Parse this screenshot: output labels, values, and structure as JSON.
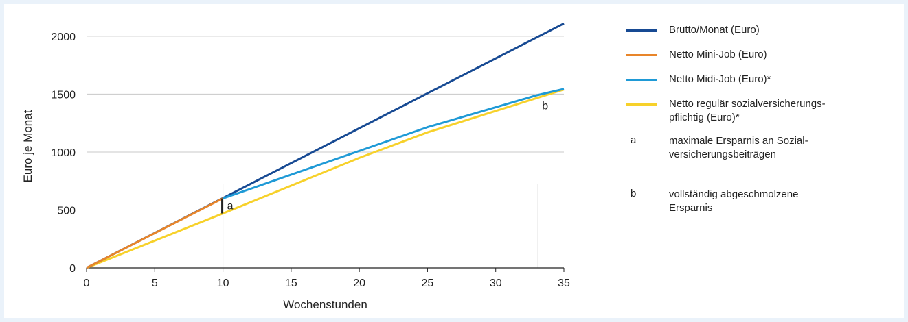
{
  "chart_data": {
    "type": "line",
    "xlabel": "Wochenstunden",
    "ylabel": "Euro je Monat",
    "xlim": [
      0,
      35
    ],
    "ylim": [
      0,
      2100
    ],
    "xticks": [
      0,
      5,
      10,
      15,
      20,
      25,
      30,
      35
    ],
    "yticks": [
      0,
      500,
      1000,
      1500,
      2000
    ],
    "grid": "horizontal",
    "legend_position": "right",
    "series": [
      {
        "name": "Brutto/Monat (Euro)",
        "color": "#174a93",
        "points": [
          [
            0,
            0
          ],
          [
            10,
            603
          ],
          [
            35,
            2110
          ]
        ]
      },
      {
        "name": "Netto Mini-Job (Euro)",
        "color": "#e8852a",
        "points": [
          [
            0,
            0
          ],
          [
            10,
            600
          ]
        ]
      },
      {
        "name": "Netto Midi-Job (Euro)*",
        "color": "#1f9ad6",
        "points": [
          [
            10,
            600
          ],
          [
            25,
            1215
          ],
          [
            33,
            1490
          ],
          [
            35,
            1545
          ]
        ]
      },
      {
        "name": "Netto regulär sozialversicherungs-\npflichtig (Euro)*",
        "color": "#f7d12a",
        "points": [
          [
            0,
            0
          ],
          [
            10,
            470
          ],
          [
            20,
            950
          ],
          [
            25,
            1170
          ],
          [
            35,
            1540
          ]
        ]
      }
    ],
    "vlines": [
      10,
      33.1
    ],
    "annotations": [
      {
        "label": "a",
        "text": "maximale Ersparnis an Sozial-\nversicherungsbeiträgen",
        "x": 10,
        "y_from": 470,
        "y_to": 600
      },
      {
        "label": "b",
        "text": "vollständig abgeschmolzene\nErsparnis",
        "x": 33.1,
        "y": 1400
      }
    ]
  }
}
